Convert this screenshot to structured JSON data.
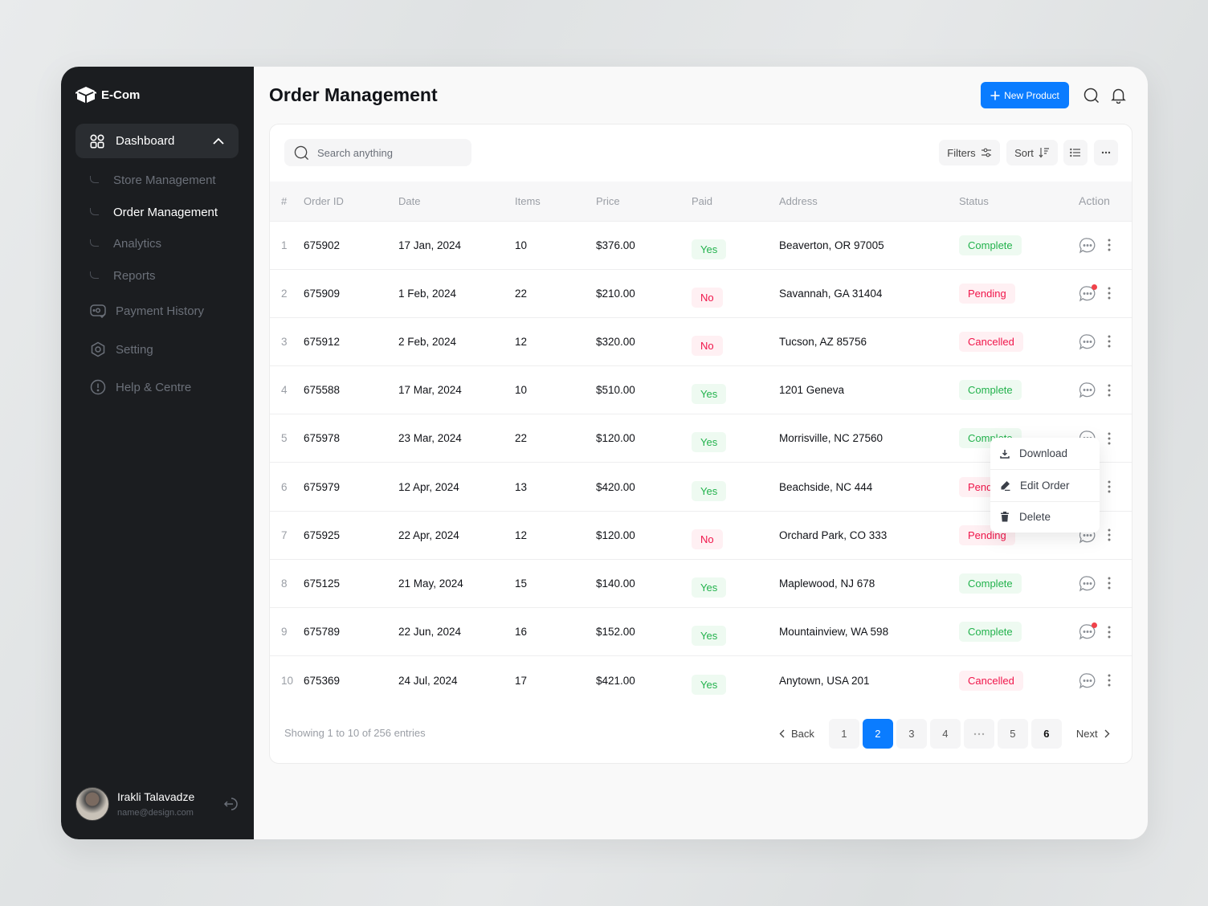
{
  "app": {
    "brand": "E-Com"
  },
  "sidebar": {
    "dashboard_label": "Dashboard",
    "sub_items": [
      {
        "label": "Store Management",
        "active": false
      },
      {
        "label": "Order Management",
        "active": true
      },
      {
        "label": "Analytics",
        "active": false
      },
      {
        "label": "Reports",
        "active": false
      }
    ],
    "items": [
      {
        "label": "Payment History",
        "icon": "payment-icon"
      },
      {
        "label": "Setting",
        "icon": "settings-icon"
      },
      {
        "label": "Help & Centre",
        "icon": "help-icon"
      }
    ],
    "user": {
      "name": "Irakli Talavadze",
      "email": "name@design.com"
    }
  },
  "header": {
    "title": "Order Management",
    "new_product_label": "New Product"
  },
  "toolbar": {
    "search_placeholder": "Search anything",
    "filters_label": "Filters",
    "sort_label": "Sort"
  },
  "table": {
    "columns": [
      "#",
      "Order ID",
      "Date",
      "Items",
      "Price",
      "Paid",
      "Address",
      "Status",
      "Action"
    ],
    "rows": [
      {
        "n": "1",
        "id": "675902",
        "date": "17 Jan, 2024",
        "items": "10",
        "price": "$376.00",
        "paid": "Yes",
        "address": "Beaverton, OR 97005",
        "status": "Complete",
        "unread": false
      },
      {
        "n": "2",
        "id": "675909",
        "date": "1 Feb, 2024",
        "items": "22",
        "price": "$210.00",
        "paid": "No",
        "address": "Savannah, GA 31404",
        "status": "Pending",
        "unread": true
      },
      {
        "n": "3",
        "id": "675912",
        "date": "2 Feb, 2024",
        "items": "12",
        "price": "$320.00",
        "paid": "No",
        "address": "Tucson, AZ 85756",
        "status": "Cancelled",
        "unread": false
      },
      {
        "n": "4",
        "id": "675588",
        "date": "17 Mar, 2024",
        "items": "10",
        "price": "$510.00",
        "paid": "Yes",
        "address": "1201 Geneva",
        "status": "Complete",
        "unread": false
      },
      {
        "n": "5",
        "id": "675978",
        "date": "23 Mar, 2024",
        "items": "22",
        "price": "$120.00",
        "paid": "Yes",
        "address": "Morrisville, NC 27560",
        "status": "Complete",
        "unread": false
      },
      {
        "n": "6",
        "id": "675979",
        "date": "12 Apr, 2024",
        "items": "13",
        "price": "$420.00",
        "paid": "Yes",
        "address": "Beachside, NC 444",
        "status": "Pending",
        "unread": false
      },
      {
        "n": "7",
        "id": "675925",
        "date": "22 Apr, 2024",
        "items": "12",
        "price": "$120.00",
        "paid": "No",
        "address": "Orchard Park, CO 333",
        "status": "Pending",
        "unread": true
      },
      {
        "n": "8",
        "id": "675125",
        "date": "21 May, 2024",
        "items": "15",
        "price": "$140.00",
        "paid": "Yes",
        "address": "Maplewood, NJ 678",
        "status": "Complete",
        "unread": false
      },
      {
        "n": "9",
        "id": "675789",
        "date": "22 Jun, 2024",
        "items": "16",
        "price": "$152.00",
        "paid": "Yes",
        "address": "Mountainview, WA 598",
        "status": "Complete",
        "unread": true
      },
      {
        "n": "10",
        "id": "675369",
        "date": "24 Jul, 2024",
        "items": "17",
        "price": "$421.00",
        "paid": "Yes",
        "address": "Anytown, USA 201",
        "status": "Cancelled",
        "unread": false
      }
    ]
  },
  "context_menu": {
    "items": [
      {
        "label": "Download",
        "icon": "download-icon"
      },
      {
        "label": "Edit Order",
        "icon": "edit-icon"
      },
      {
        "label": "Delete",
        "icon": "trash-icon"
      }
    ]
  },
  "pagination": {
    "summary": "Showing 1 to 10 of 256 entries",
    "back_label": "Back",
    "next_label": "Next",
    "pages": [
      "1",
      "2",
      "3",
      "4",
      "...",
      "5",
      "6"
    ],
    "current": "2"
  },
  "colors": {
    "accent": "#0a7cff",
    "sidebar_bg": "#1b1d20",
    "success": "#22b24c",
    "danger": "#f0154a"
  }
}
